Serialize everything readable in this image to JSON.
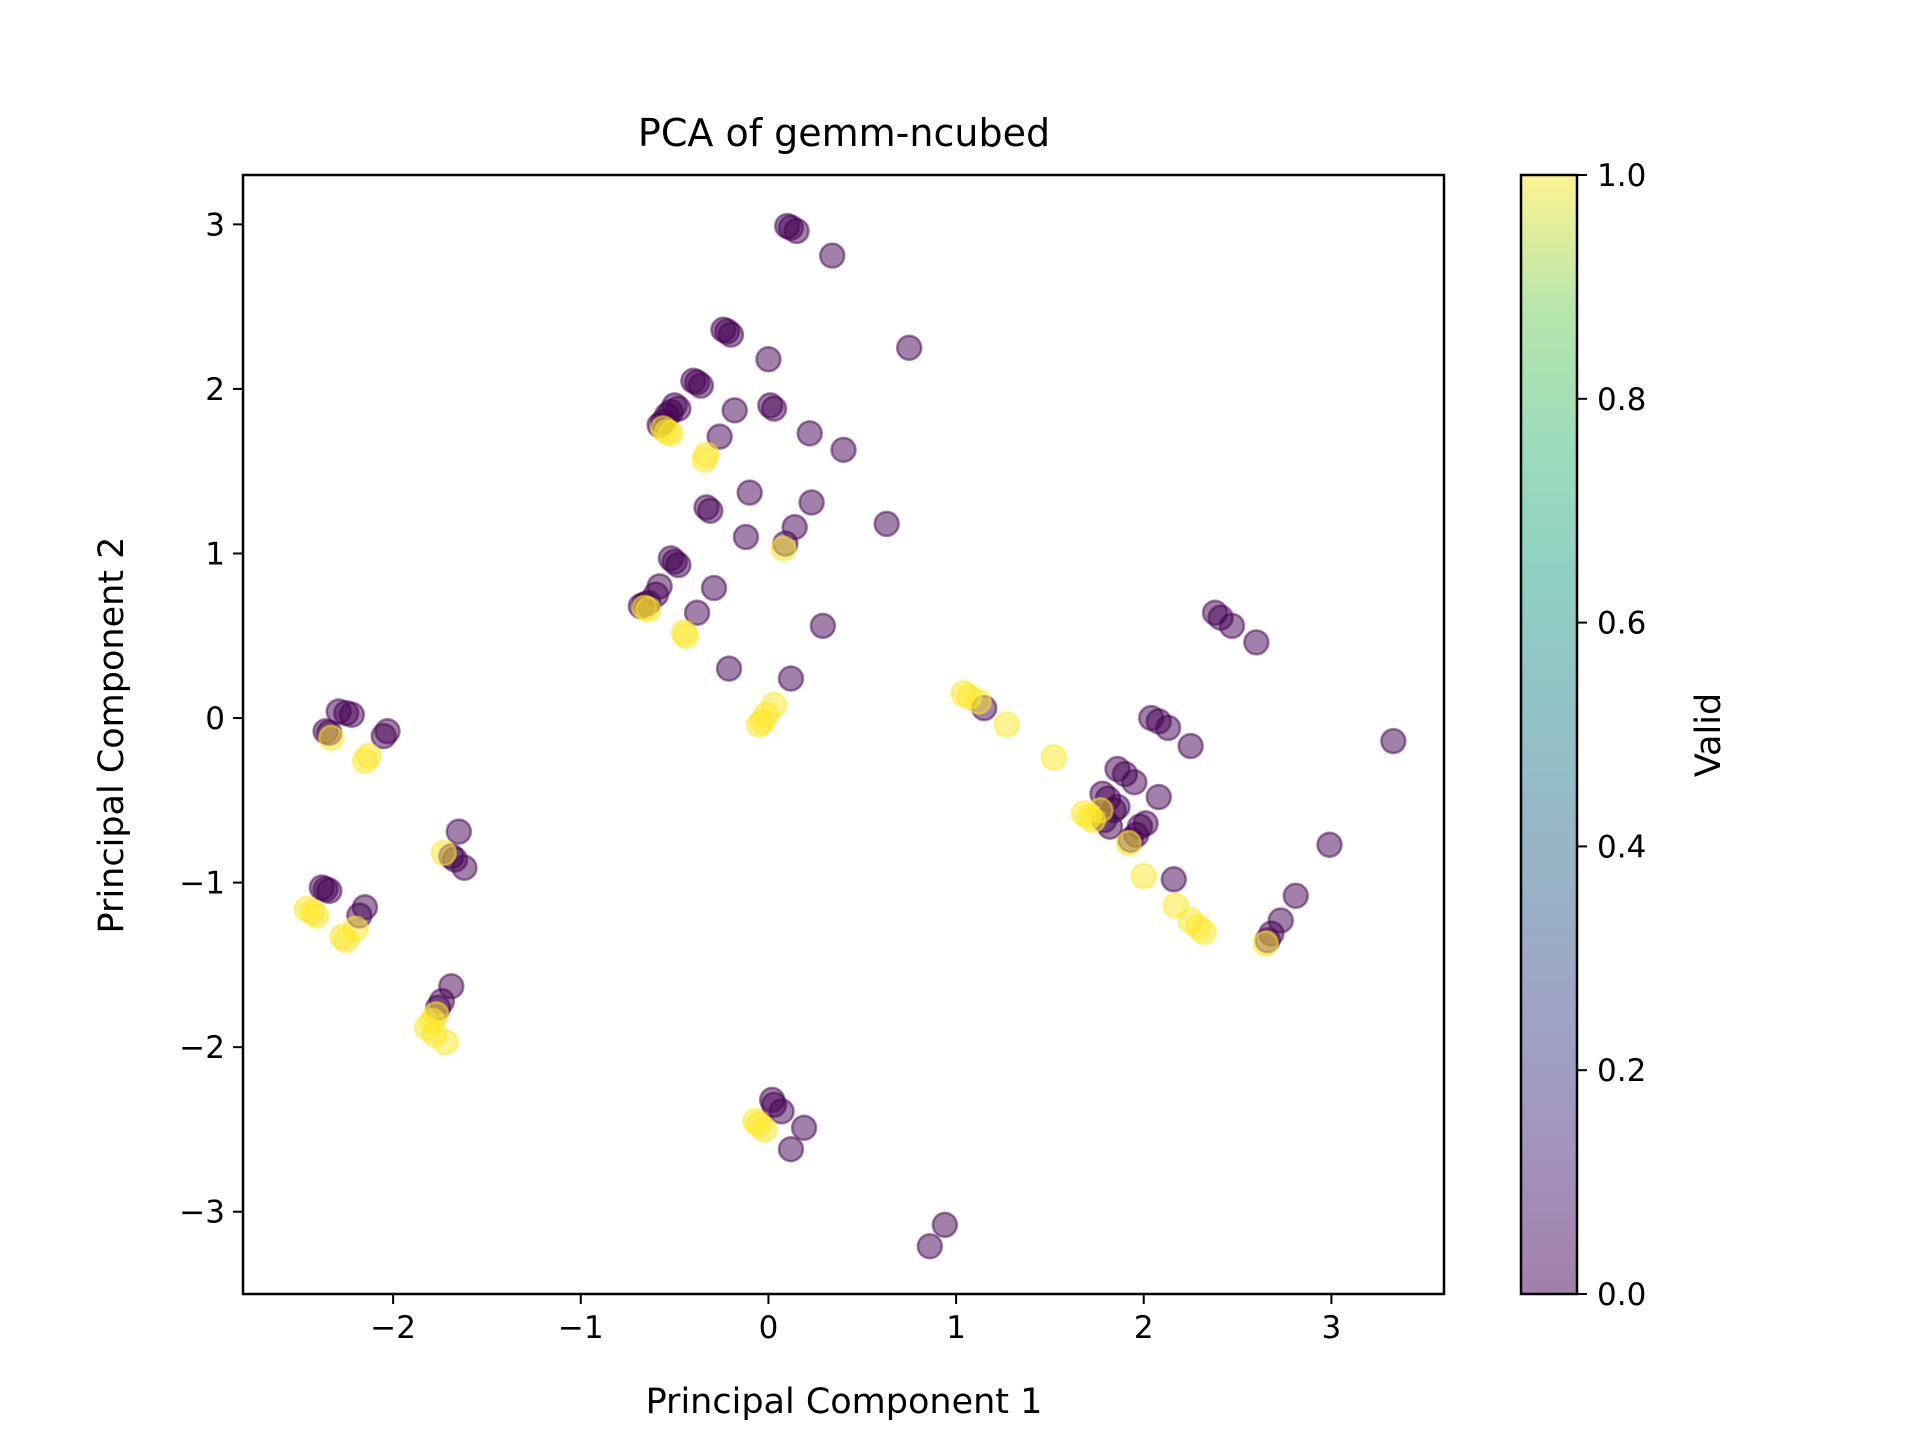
{
  "chart_data": {
    "type": "scatter",
    "title": "PCA of gemm-ncubed",
    "xlabel": "Principal Component 1",
    "ylabel": "Principal Component 2",
    "xlim": [
      -2.8,
      3.6
    ],
    "ylim": [
      -3.5,
      3.3
    ],
    "xticks": [
      -2,
      -1,
      0,
      1,
      2,
      3
    ],
    "xtick_labels": [
      "−2",
      "−1",
      "0",
      "1",
      "2",
      "3"
    ],
    "yticks": [
      -3,
      -2,
      -1,
      0,
      1,
      2,
      3
    ],
    "ytick_labels": [
      "−3",
      "−2",
      "−1",
      "0",
      "1",
      "2",
      "3"
    ],
    "grid": false,
    "marker_alpha": 0.5,
    "colorbar": {
      "label": "Valid",
      "range": [
        0.0,
        1.0
      ],
      "ticks": [
        0.0,
        0.2,
        0.4,
        0.6,
        0.8,
        1.0
      ],
      "tick_labels": [
        "0.0",
        "0.2",
        "0.4",
        "0.6",
        "0.8",
        "1.0"
      ],
      "colormap": "viridis",
      "low_color": "#440154",
      "high_color": "#fde725"
    },
    "series": [
      {
        "valid": 0,
        "color": "#440154",
        "points": [
          [
            0.1,
            2.99
          ],
          [
            0.12,
            2.98
          ],
          [
            0.15,
            2.96
          ],
          [
            0.34,
            2.81
          ],
          [
            0.75,
            2.25
          ],
          [
            -0.24,
            2.36
          ],
          [
            -0.22,
            2.35
          ],
          [
            -0.2,
            2.33
          ],
          [
            0.0,
            2.18
          ],
          [
            -0.4,
            2.05
          ],
          [
            -0.38,
            2.04
          ],
          [
            -0.36,
            2.02
          ],
          [
            -0.5,
            1.9
          ],
          [
            -0.48,
            1.88
          ],
          [
            -0.52,
            1.86
          ],
          [
            -0.54,
            1.84
          ],
          [
            -0.56,
            1.8
          ],
          [
            -0.58,
            1.78
          ],
          [
            -0.18,
            1.87
          ],
          [
            0.01,
            1.9
          ],
          [
            0.03,
            1.88
          ],
          [
            0.22,
            1.73
          ],
          [
            0.4,
            1.63
          ],
          [
            -0.26,
            1.71
          ],
          [
            -0.1,
            1.37
          ],
          [
            -0.33,
            1.28
          ],
          [
            -0.31,
            1.26
          ],
          [
            0.23,
            1.31
          ],
          [
            0.63,
            1.18
          ],
          [
            0.14,
            1.16
          ],
          [
            -0.12,
            1.1
          ],
          [
            0.09,
            1.06
          ],
          [
            -0.52,
            0.97
          ],
          [
            -0.5,
            0.95
          ],
          [
            -0.48,
            0.93
          ],
          [
            -0.58,
            0.8
          ],
          [
            -0.6,
            0.75
          ],
          [
            -0.64,
            0.7
          ],
          [
            -0.66,
            0.69
          ],
          [
            -0.68,
            0.68
          ],
          [
            -0.29,
            0.79
          ],
          [
            -0.38,
            0.64
          ],
          [
            0.29,
            0.56
          ],
          [
            -0.21,
            0.3
          ],
          [
            0.12,
            0.24
          ],
          [
            1.15,
            0.06
          ],
          [
            2.38,
            0.64
          ],
          [
            2.41,
            0.61
          ],
          [
            2.47,
            0.56
          ],
          [
            2.6,
            0.46
          ],
          [
            2.04,
            0.0
          ],
          [
            2.08,
            -0.02
          ],
          [
            2.13,
            -0.06
          ],
          [
            2.25,
            -0.17
          ],
          [
            3.33,
            -0.14
          ],
          [
            1.86,
            -0.31
          ],
          [
            1.9,
            -0.34
          ],
          [
            1.95,
            -0.39
          ],
          [
            1.78,
            -0.46
          ],
          [
            1.81,
            -0.49
          ],
          [
            2.08,
            -0.48
          ],
          [
            1.84,
            -0.56
          ],
          [
            1.86,
            -0.54
          ],
          [
            1.79,
            -0.62
          ],
          [
            1.82,
            -0.66
          ],
          [
            1.98,
            -0.66
          ],
          [
            2.01,
            -0.64
          ],
          [
            1.96,
            -0.71
          ],
          [
            1.93,
            -0.74
          ],
          [
            2.16,
            -0.98
          ],
          [
            2.99,
            -0.77
          ],
          [
            2.81,
            -1.08
          ],
          [
            2.73,
            -1.23
          ],
          [
            2.68,
            -1.31
          ],
          [
            2.66,
            -1.35
          ],
          [
            -2.29,
            0.04
          ],
          [
            -2.25,
            0.03
          ],
          [
            -2.22,
            0.02
          ],
          [
            -2.36,
            -0.08
          ],
          [
            -2.34,
            -0.09
          ],
          [
            -2.03,
            -0.08
          ],
          [
            -2.05,
            -0.11
          ],
          [
            -1.65,
            -0.69
          ],
          [
            -1.69,
            -0.84
          ],
          [
            -1.67,
            -0.86
          ],
          [
            -1.62,
            -0.91
          ],
          [
            -2.38,
            -1.03
          ],
          [
            -2.36,
            -1.04
          ],
          [
            -2.34,
            -1.05
          ],
          [
            -2.15,
            -1.15
          ],
          [
            -2.18,
            -1.2
          ],
          [
            -1.69,
            -1.63
          ],
          [
            -1.74,
            -1.72
          ],
          [
            -1.76,
            -1.76
          ],
          [
            0.02,
            -2.32
          ],
          [
            0.03,
            -2.35
          ],
          [
            0.07,
            -2.39
          ],
          [
            0.19,
            -2.49
          ],
          [
            0.12,
            -2.62
          ],
          [
            0.94,
            -3.08
          ],
          [
            0.86,
            -3.21
          ]
        ]
      },
      {
        "valid": 1,
        "color": "#fde725",
        "points": [
          [
            -0.56,
            1.76
          ],
          [
            -0.54,
            1.74
          ],
          [
            -0.52,
            1.73
          ],
          [
            -0.33,
            1.6
          ],
          [
            -0.34,
            1.57
          ],
          [
            0.08,
            1.03
          ],
          [
            -0.66,
            0.67
          ],
          [
            -0.64,
            0.66
          ],
          [
            -0.45,
            0.52
          ],
          [
            -0.44,
            0.5
          ],
          [
            -0.05,
            -0.04
          ],
          [
            -0.03,
            -0.02
          ],
          [
            -0.01,
            0.02
          ],
          [
            0.03,
            0.08
          ],
          [
            1.04,
            0.15
          ],
          [
            1.07,
            0.13
          ],
          [
            1.12,
            0.1
          ],
          [
            1.27,
            -0.04
          ],
          [
            1.52,
            -0.24
          ],
          [
            1.68,
            -0.58
          ],
          [
            1.71,
            -0.6
          ],
          [
            1.73,
            -0.62
          ],
          [
            1.77,
            -0.56
          ],
          [
            1.92,
            -0.76
          ],
          [
            2.0,
            -0.96
          ],
          [
            2.17,
            -1.14
          ],
          [
            2.25,
            -1.23
          ],
          [
            2.29,
            -1.27
          ],
          [
            2.32,
            -1.3
          ],
          [
            2.65,
            -1.37
          ],
          [
            -2.33,
            -0.12
          ],
          [
            -2.15,
            -0.26
          ],
          [
            -2.13,
            -0.23
          ],
          [
            -1.73,
            -0.82
          ],
          [
            -2.46,
            -1.16
          ],
          [
            -2.43,
            -1.18
          ],
          [
            -2.41,
            -1.2
          ],
          [
            -2.27,
            -1.33
          ],
          [
            -2.25,
            -1.35
          ],
          [
            -2.2,
            -1.28
          ],
          [
            -1.82,
            -1.88
          ],
          [
            -1.79,
            -1.84
          ],
          [
            -1.77,
            -1.8
          ],
          [
            -1.78,
            -1.92
          ],
          [
            -1.72,
            -1.97
          ],
          [
            -0.07,
            -2.45
          ],
          [
            -0.05,
            -2.47
          ],
          [
            -0.02,
            -2.5
          ]
        ]
      }
    ]
  }
}
